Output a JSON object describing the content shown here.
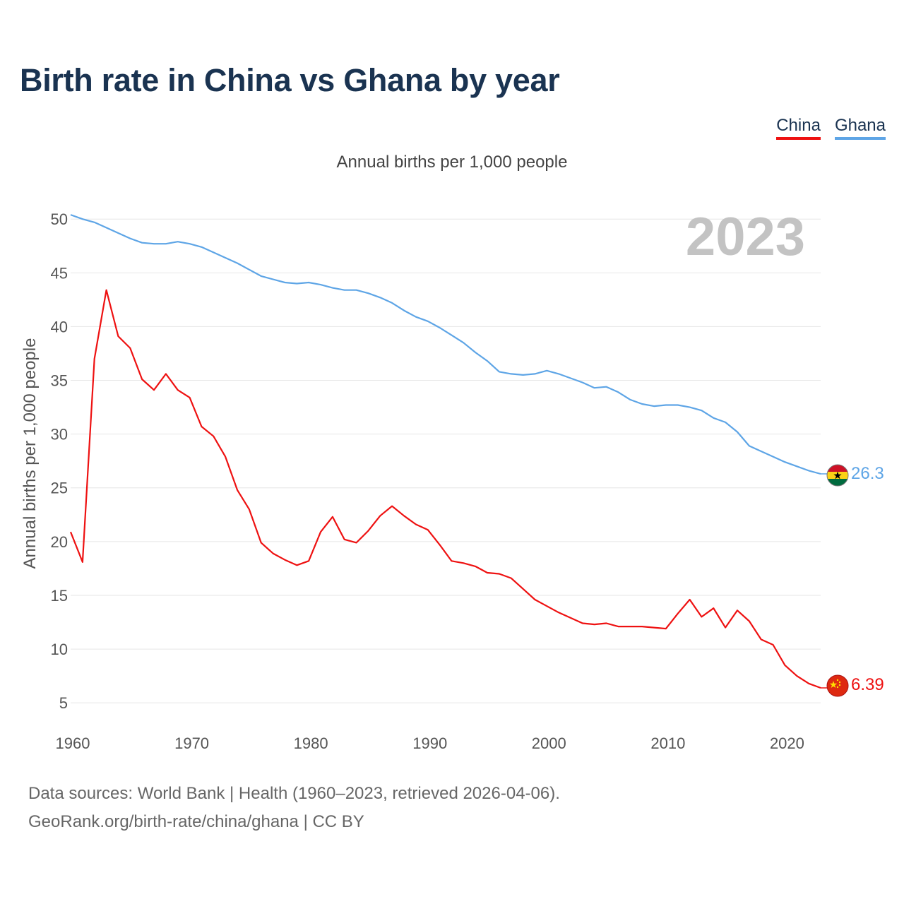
{
  "title": "Birth rate in China vs Ghana by year",
  "subtitle": "Annual births per 1,000 people",
  "legend": [
    {
      "label": "China",
      "color": "#ee1111"
    },
    {
      "label": "Ghana",
      "color": "#5ea5e6"
    }
  ],
  "footer": {
    "line1": "Data sources: World Bank | Health (1960–2023, retrieved 2026-04-06).",
    "line2": "GeoRank.org/birth-rate/china/ghana | CC BY"
  },
  "chart_data": {
    "type": "line",
    "title": "Birth rate in China vs Ghana by year",
    "subtitle": "Annual births per 1,000 people",
    "xlabel": "",
    "ylabel": "Annual births per 1,000 people",
    "xlim": [
      1960,
      2023
    ],
    "ylim": [
      3.5,
      51
    ],
    "xticks": [
      1960,
      1970,
      1980,
      1990,
      2000,
      2010,
      2020
    ],
    "yticks": [
      5,
      10,
      15,
      20,
      25,
      30,
      35,
      40,
      45,
      50
    ],
    "grid": true,
    "legend_position": "top-right",
    "year_label": "2023",
    "x": [
      1960,
      1961,
      1962,
      1963,
      1964,
      1965,
      1966,
      1967,
      1968,
      1969,
      1970,
      1971,
      1972,
      1973,
      1974,
      1975,
      1976,
      1977,
      1978,
      1979,
      1980,
      1981,
      1982,
      1983,
      1984,
      1985,
      1986,
      1987,
      1988,
      1989,
      1990,
      1991,
      1992,
      1993,
      1994,
      1995,
      1996,
      1997,
      1998,
      1999,
      2000,
      2001,
      2002,
      2003,
      2004,
      2005,
      2006,
      2007,
      2008,
      2009,
      2010,
      2011,
      2012,
      2013,
      2014,
      2015,
      2016,
      2017,
      2018,
      2019,
      2020,
      2021,
      2022,
      2023
    ],
    "series": [
      {
        "name": "China",
        "color": "#ee1111",
        "end_label": "6.39",
        "flag": "china-flag-icon",
        "values": [
          20.9,
          18.1,
          37.0,
          43.4,
          39.1,
          38.0,
          35.1,
          34.1,
          35.6,
          34.1,
          33.4,
          30.7,
          29.8,
          27.9,
          24.8,
          23.0,
          19.9,
          18.9,
          18.3,
          17.8,
          18.2,
          20.9,
          22.3,
          20.2,
          19.9,
          21.0,
          22.4,
          23.3,
          22.4,
          21.6,
          21.1,
          19.7,
          18.2,
          18.0,
          17.7,
          17.1,
          17.0,
          16.6,
          15.6,
          14.6,
          14.0,
          13.4,
          12.9,
          12.4,
          12.3,
          12.4,
          12.1,
          12.1,
          12.1,
          12.0,
          11.9,
          13.3,
          14.6,
          13.0,
          13.8,
          12.0,
          13.6,
          12.6,
          10.9,
          10.4,
          8.5,
          7.5,
          6.8,
          6.39
        ]
      },
      {
        "name": "Ghana",
        "color": "#5ea5e6",
        "end_label": "26.3",
        "flag": "ghana-flag-icon",
        "values": [
          50.4,
          50.0,
          49.7,
          49.2,
          48.7,
          48.2,
          47.8,
          47.7,
          47.7,
          47.9,
          47.7,
          47.4,
          46.9,
          46.4,
          45.9,
          45.3,
          44.7,
          44.4,
          44.1,
          44.0,
          44.1,
          43.9,
          43.6,
          43.4,
          43.4,
          43.1,
          42.7,
          42.2,
          41.5,
          40.9,
          40.5,
          39.9,
          39.2,
          38.5,
          37.6,
          36.8,
          35.8,
          35.6,
          35.5,
          35.6,
          35.9,
          35.6,
          35.2,
          34.8,
          34.3,
          34.4,
          33.9,
          33.2,
          32.8,
          32.6,
          32.7,
          32.7,
          32.5,
          32.2,
          31.5,
          31.1,
          30.2,
          28.9,
          28.4,
          27.9,
          27.4,
          27.0,
          26.6,
          26.3
        ]
      }
    ]
  }
}
